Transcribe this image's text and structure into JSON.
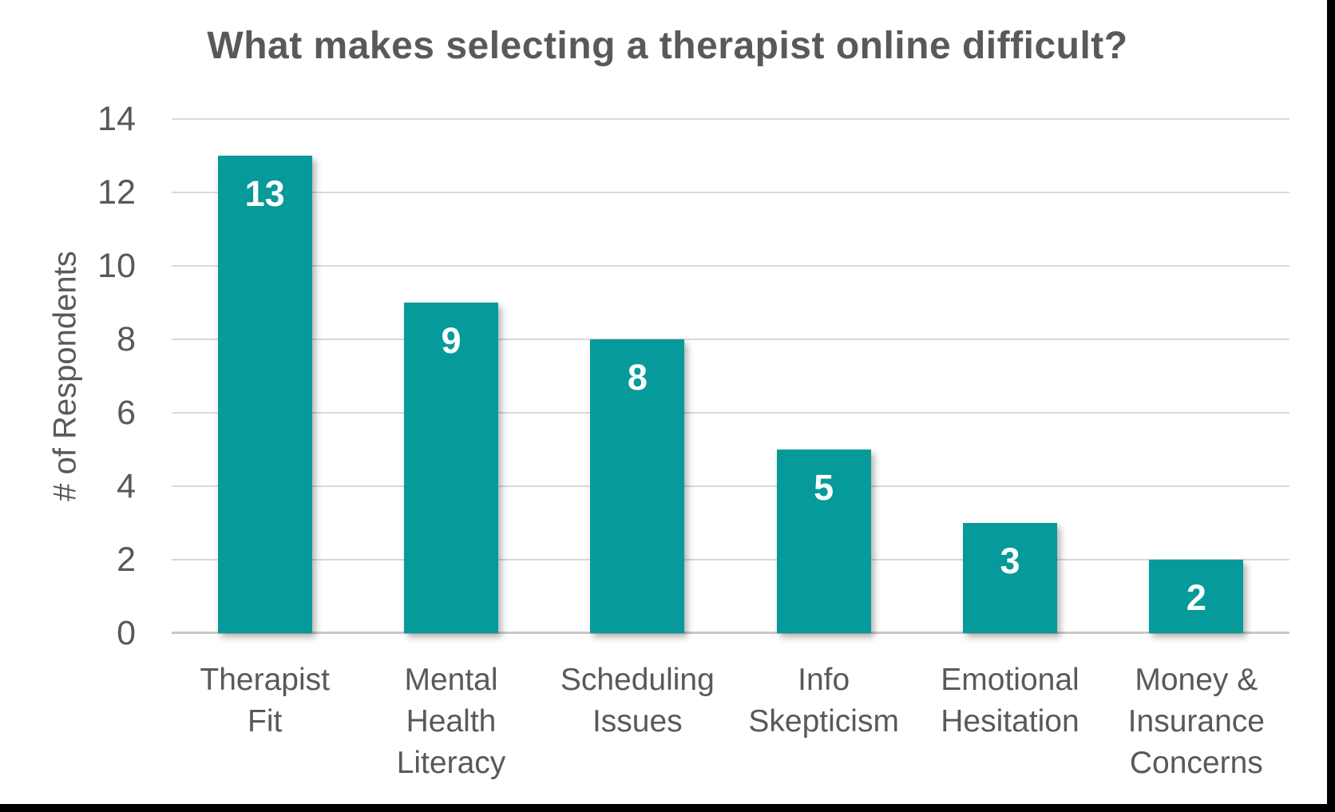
{
  "title": "What makes selecting a therapist online difficult?",
  "colors": {
    "bar": "#079A9A",
    "text": "#595959",
    "gridline": "#D9D9D9",
    "axis_line": "#C9C9C9",
    "bar_value_label": "#FFFFFF",
    "background": "#FFFFFF",
    "frame": "#000000"
  },
  "chart_data": {
    "type": "bar",
    "title": "What makes selecting a therapist online difficult?",
    "categories": [
      "Therapist Fit",
      "Mental Health Literacy",
      "Scheduling Issues",
      "Info Skepticism",
      "Emotional Hesitation",
      "Money & Insurance Concerns"
    ],
    "category_label_lines": [
      [
        "Therapist",
        "Fit"
      ],
      [
        "Mental",
        "Health",
        "Literacy"
      ],
      [
        "Scheduling",
        "Issues"
      ],
      [
        "Info",
        "Skepticism"
      ],
      [
        "Emotional",
        "Hesitation"
      ],
      [
        "Money &",
        "Insurance",
        "Concerns"
      ]
    ],
    "values": [
      13,
      9,
      8,
      5,
      3,
      2
    ],
    "data_labels": [
      "13",
      "9",
      "8",
      "5",
      "3",
      "2"
    ],
    "data_label_position": "inside-top",
    "xlabel": "",
    "ylabel": "# of Respondents",
    "ylim": [
      0,
      14
    ],
    "yticks": [
      0,
      2,
      4,
      6,
      8,
      10,
      12,
      14
    ],
    "grid": true,
    "legend": false
  }
}
